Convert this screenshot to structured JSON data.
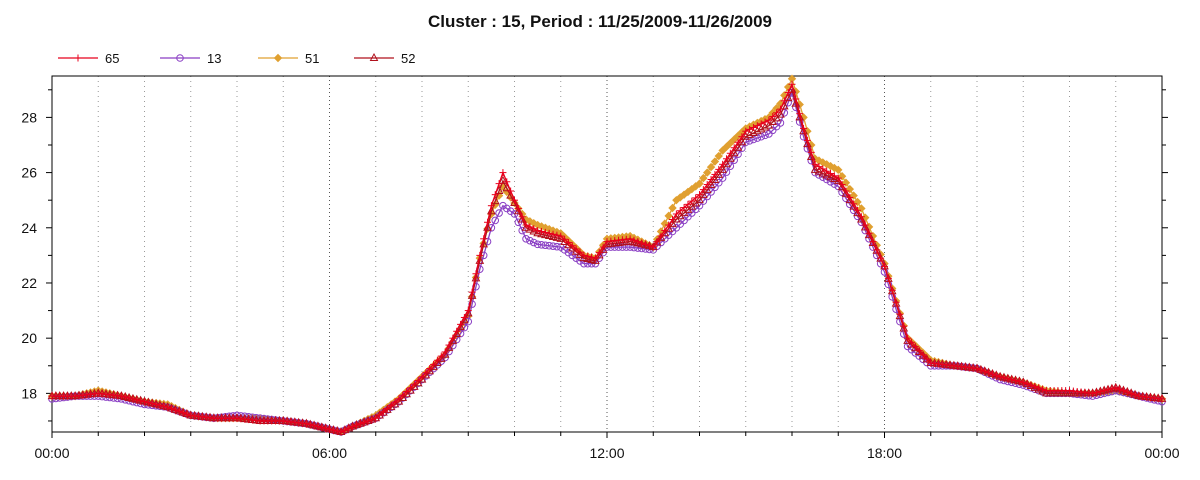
{
  "chart_data": {
    "type": "line",
    "title": "Cluster : 15, Period : 11/25/2009-11/26/2009",
    "xlabel": "",
    "ylabel": "",
    "x_tick_labels": [
      "00:00",
      "06:00",
      "12:00",
      "18:00",
      "00:00"
    ],
    "x_range_hours": [
      0,
      24
    ],
    "ylim": [
      16.6,
      29.5
    ],
    "y_ticks": [
      18,
      20,
      22,
      24,
      26,
      28
    ],
    "grid": "vertical dotted lines",
    "legend_position": "top-left",
    "x_hours": [
      0,
      0.5,
      1,
      1.5,
      2,
      2.5,
      3,
      3.5,
      4,
      4.5,
      5,
      5.5,
      6,
      6.25,
      6.5,
      7,
      7.5,
      8,
      8.5,
      9,
      9.25,
      9.5,
      9.75,
      10,
      10.25,
      10.5,
      11,
      11.5,
      11.75,
      12,
      12.5,
      13,
      13.5,
      14,
      14.5,
      15,
      15.5,
      15.75,
      16,
      16.25,
      16.5,
      17,
      17.5,
      18,
      18.5,
      19,
      19.5,
      20,
      20.5,
      21,
      21.5,
      22,
      22.5,
      23,
      23.5,
      24
    ],
    "series": [
      {
        "name": "65",
        "color": "#e8001c",
        "marker": "plus",
        "values": [
          17.9,
          17.9,
          18.0,
          17.9,
          17.7,
          17.5,
          17.2,
          17.1,
          17.1,
          17.0,
          17.0,
          16.9,
          16.7,
          16.6,
          16.8,
          17.1,
          17.8,
          18.6,
          19.5,
          21.0,
          23.0,
          24.8,
          26.0,
          25.0,
          24.1,
          23.9,
          23.7,
          23.0,
          22.9,
          23.5,
          23.6,
          23.3,
          24.5,
          25.2,
          26.3,
          27.5,
          27.9,
          28.3,
          29.2,
          27.6,
          26.3,
          25.8,
          24.4,
          22.6,
          20.0,
          19.1,
          19.0,
          18.9,
          18.6,
          18.4,
          18.1,
          18.1,
          18.0,
          18.2,
          17.9,
          17.8
        ]
      },
      {
        "name": "13",
        "color": "#8a3fc4",
        "marker": "circle",
        "values": [
          17.8,
          17.9,
          17.9,
          17.8,
          17.6,
          17.5,
          17.2,
          17.1,
          17.2,
          17.1,
          17.0,
          16.9,
          16.7,
          16.6,
          16.8,
          17.1,
          17.7,
          18.5,
          19.3,
          20.6,
          22.5,
          24.0,
          24.8,
          24.5,
          23.6,
          23.4,
          23.3,
          22.7,
          22.7,
          23.3,
          23.3,
          23.2,
          24.0,
          24.8,
          25.8,
          27.1,
          27.4,
          27.8,
          28.9,
          27.3,
          26.0,
          25.5,
          24.2,
          22.4,
          19.7,
          19.0,
          19.0,
          18.9,
          18.5,
          18.3,
          18.0,
          18.0,
          17.9,
          18.1,
          17.9,
          17.7
        ]
      },
      {
        "name": "51",
        "color": "#e0a030",
        "marker": "diamond",
        "values": [
          17.9,
          17.9,
          18.1,
          17.9,
          17.7,
          17.6,
          17.2,
          17.1,
          17.1,
          17.1,
          17.0,
          16.9,
          16.7,
          16.6,
          16.8,
          17.2,
          17.8,
          18.6,
          19.4,
          20.8,
          22.9,
          24.5,
          25.5,
          24.9,
          24.3,
          24.1,
          23.8,
          23.0,
          22.9,
          23.6,
          23.7,
          23.3,
          25.0,
          25.6,
          26.8,
          27.6,
          28.0,
          28.5,
          29.4,
          28.0,
          26.5,
          26.1,
          24.7,
          22.7,
          20.0,
          19.2,
          19.0,
          18.9,
          18.6,
          18.4,
          18.1,
          18.0,
          18.0,
          18.1,
          17.9,
          17.8
        ]
      },
      {
        "name": "52",
        "color": "#b0101c",
        "marker": "triangle",
        "values": [
          17.9,
          17.9,
          18.0,
          17.9,
          17.7,
          17.5,
          17.2,
          17.1,
          17.1,
          17.0,
          17.0,
          16.9,
          16.7,
          16.6,
          16.8,
          17.1,
          17.7,
          18.5,
          19.4,
          20.9,
          22.8,
          24.6,
          25.7,
          24.9,
          24.0,
          23.8,
          23.6,
          22.9,
          22.8,
          23.4,
          23.5,
          23.3,
          24.3,
          25.0,
          26.1,
          27.3,
          27.7,
          28.1,
          29.0,
          27.5,
          26.1,
          25.7,
          24.3,
          22.6,
          19.9,
          19.1,
          19.0,
          18.9,
          18.6,
          18.4,
          18.0,
          18.0,
          18.0,
          18.2,
          17.9,
          17.8
        ]
      }
    ]
  }
}
